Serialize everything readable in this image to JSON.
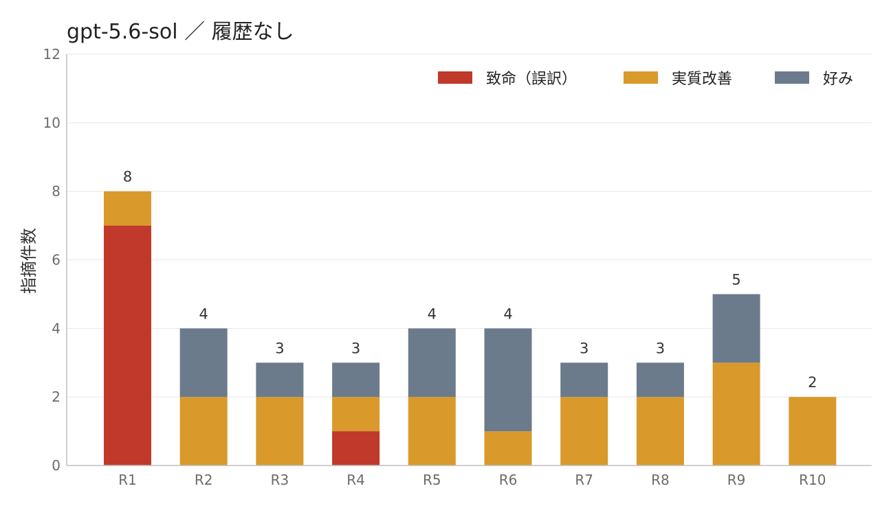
{
  "chart_data": {
    "type": "bar",
    "stacked": true,
    "title": "gpt-5.6-sol ／ 履歴なし",
    "xlabel": "",
    "ylabel": "指摘件数",
    "categories": [
      "R1",
      "R2",
      "R3",
      "R4",
      "R5",
      "R6",
      "R7",
      "R8",
      "R9",
      "R10"
    ],
    "series": [
      {
        "name": "致命（誤訳）",
        "color": "#c0392b",
        "values": [
          7,
          0,
          0,
          1,
          0,
          0,
          0,
          0,
          0,
          0
        ]
      },
      {
        "name": "実質改善",
        "color": "#d9992b",
        "values": [
          1,
          2,
          2,
          1,
          2,
          1,
          2,
          2,
          3,
          2
        ]
      },
      {
        "name": "好み",
        "color": "#6b7b8c",
        "values": [
          0,
          2,
          1,
          1,
          2,
          3,
          1,
          1,
          2,
          0
        ]
      }
    ],
    "totals": [
      8,
      4,
      3,
      3,
      4,
      4,
      3,
      3,
      5,
      2
    ],
    "ylim": [
      0,
      12
    ],
    "yticks": [
      0,
      2,
      4,
      6,
      8,
      10,
      12
    ],
    "grid": true,
    "legend_position": "top-right"
  }
}
